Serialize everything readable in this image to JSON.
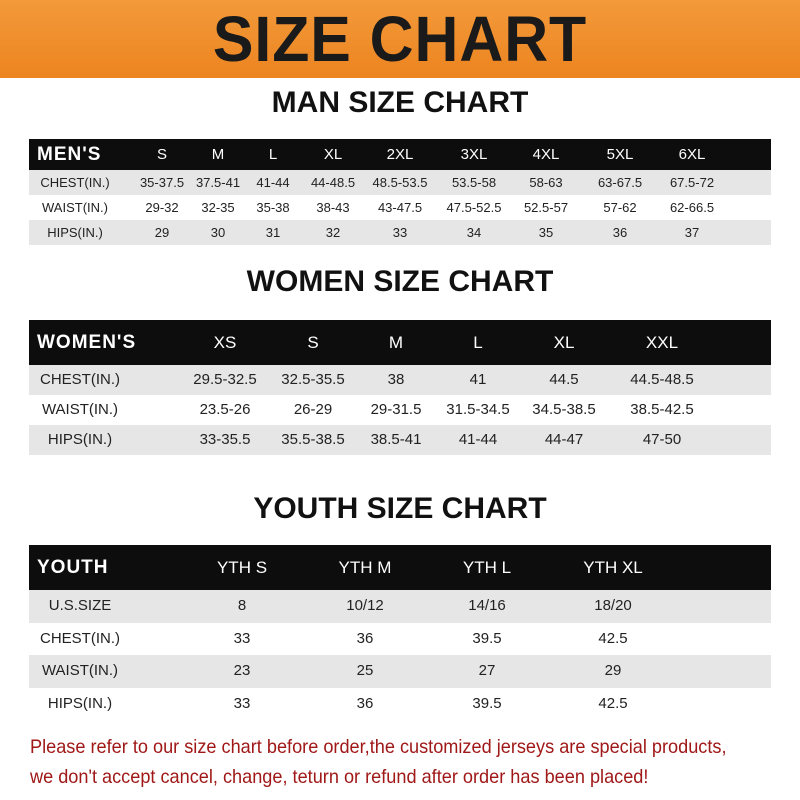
{
  "title": "SIZE CHART",
  "men": {
    "title": "MAN SIZE CHART",
    "header": [
      "MEN'S",
      "S",
      "M",
      "L",
      "XL",
      "2XL",
      "3XL",
      "4XL",
      "5XL",
      "6XL"
    ],
    "rows": [
      [
        "CHEST(IN.)",
        "35-37.5",
        "37.5-41",
        "41-44",
        "44-48.5",
        "48.5-53.5",
        "53.5-58",
        "58-63",
        "63-67.5",
        "67.5-72"
      ],
      [
        "WAIST(IN.)",
        "29-32",
        "32-35",
        "35-38",
        "38-43",
        "43-47.5",
        "47.5-52.5",
        "52.5-57",
        "57-62",
        "62-66.5"
      ],
      [
        "HIPS(IN.)",
        "29",
        "30",
        "31",
        "32",
        "33",
        "34",
        "35",
        "36",
        "37"
      ]
    ]
  },
  "women": {
    "title": "WOMEN SIZE CHART",
    "header": [
      "WOMEN'S",
      "XS",
      "S",
      "M",
      "L",
      "XL",
      "XXL"
    ],
    "rows": [
      [
        "CHEST(IN.)",
        "29.5-32.5",
        "32.5-35.5",
        "38",
        "41",
        "44.5",
        "44.5-48.5"
      ],
      [
        "WAIST(IN.)",
        "23.5-26",
        "26-29",
        "29-31.5",
        "31.5-34.5",
        "34.5-38.5",
        "38.5-42.5"
      ],
      [
        "HIPS(IN.)",
        "33-35.5",
        "35.5-38.5",
        "38.5-41",
        "41-44",
        "44-47",
        "47-50"
      ]
    ]
  },
  "youth": {
    "title": "YOUTH SIZE CHART",
    "header": [
      "YOUTH",
      "YTH S",
      "YTH M",
      "YTH L",
      "YTH XL"
    ],
    "rows": [
      [
        "U.S.SIZE",
        "8",
        "10/12",
        "14/16",
        "18/20"
      ],
      [
        "CHEST(IN.)",
        "33",
        "36",
        "39.5",
        "42.5"
      ],
      [
        "WAIST(IN.)",
        "23",
        "25",
        "27",
        "29"
      ],
      [
        "HIPS(IN.)",
        "33",
        "36",
        "39.5",
        "42.5"
      ]
    ]
  },
  "notice": "Please refer to our size chart before order,the customized jerseys are special products, we don't accept cancel, change, teturn or refund after order has been placed!",
  "colors": {
    "banner": "#ec8420",
    "header_row": "#0d0d0d",
    "stripe": "#e6e6e6",
    "notice": "#a01818"
  }
}
